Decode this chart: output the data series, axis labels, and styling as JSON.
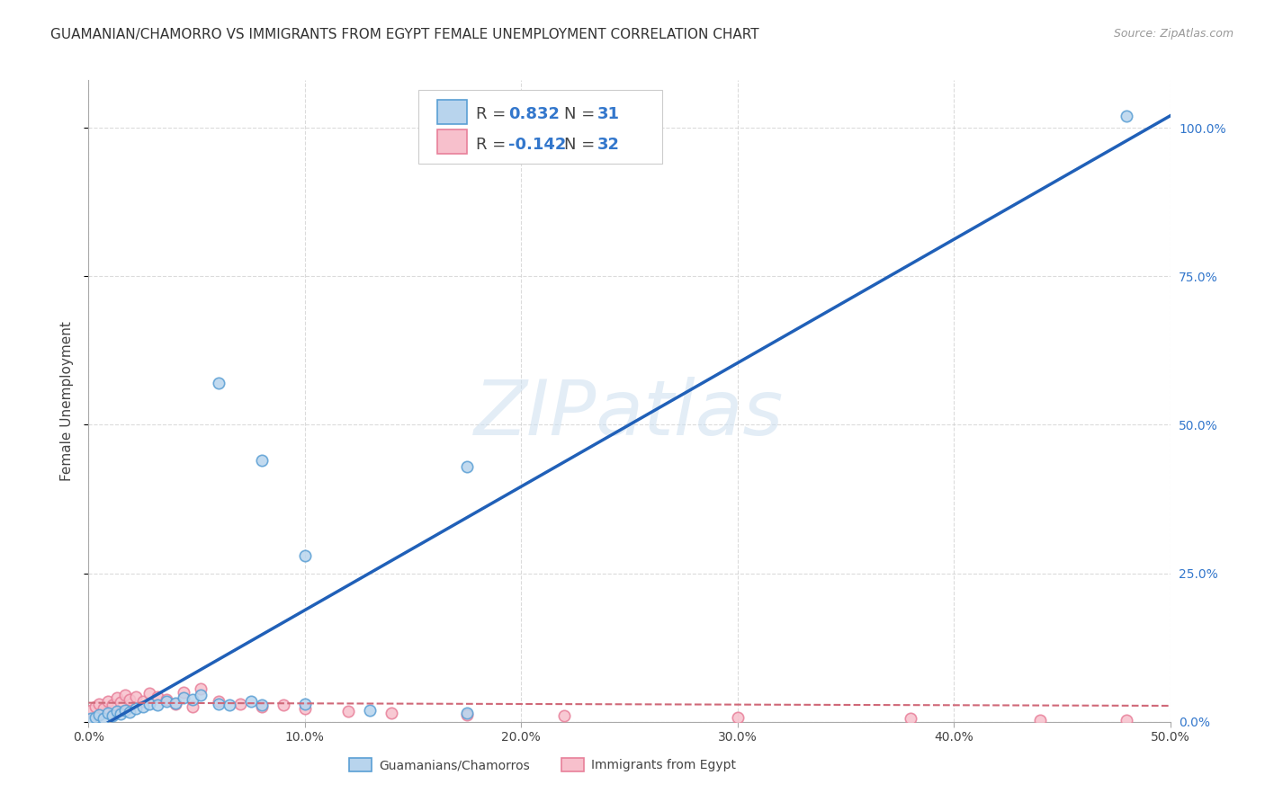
{
  "title": "GUAMANIAN/CHAMORRO VS IMMIGRANTS FROM EGYPT FEMALE UNEMPLOYMENT CORRELATION CHART",
  "source": "Source: ZipAtlas.com",
  "ylabel": "Female Unemployment",
  "x_ticks": [
    0.0,
    0.1,
    0.2,
    0.3,
    0.4,
    0.5
  ],
  "x_tick_labels": [
    "0.0%",
    "10.0%",
    "20.0%",
    "30.0%",
    "40.0%",
    "50.0%"
  ],
  "y_ticks_right": [
    0.0,
    0.25,
    0.5,
    0.75,
    1.0
  ],
  "y_tick_labels_right": [
    "0.0%",
    "25.0%",
    "50.0%",
    "75.0%",
    "100.0%"
  ],
  "xlim": [
    0.0,
    0.5
  ],
  "ylim": [
    0.0,
    1.08
  ],
  "blue_fill": "#b8d4ed",
  "blue_edge": "#5a9fd4",
  "pink_fill": "#f7c0cc",
  "pink_edge": "#e8809a",
  "trend_blue_color": "#2060b8",
  "trend_pink_color": "#d06878",
  "grid_color": "#cccccc",
  "watermark": "ZIPatlas",
  "legend_label_blue": "Guamanians/Chamorros",
  "legend_label_pink": "Immigrants from Egypt",
  "blue_x": [
    0.001,
    0.003,
    0.005,
    0.007,
    0.009,
    0.011,
    0.013,
    0.015,
    0.017,
    0.019,
    0.022,
    0.025,
    0.028,
    0.032,
    0.036,
    0.04,
    0.044,
    0.048,
    0.052,
    0.06,
    0.065,
    0.075,
    0.08,
    0.1,
    0.13,
    0.175,
    0.48,
    0.06,
    0.08,
    0.1,
    0.175
  ],
  "blue_y": [
    0.005,
    0.008,
    0.012,
    0.006,
    0.015,
    0.01,
    0.018,
    0.013,
    0.02,
    0.016,
    0.022,
    0.025,
    0.03,
    0.028,
    0.035,
    0.032,
    0.04,
    0.038,
    0.045,
    0.03,
    0.028,
    0.035,
    0.028,
    0.03,
    0.02,
    0.015,
    1.02,
    0.57,
    0.44,
    0.28,
    0.43
  ],
  "pink_x": [
    0.001,
    0.003,
    0.005,
    0.007,
    0.009,
    0.011,
    0.013,
    0.015,
    0.017,
    0.019,
    0.022,
    0.025,
    0.028,
    0.032,
    0.036,
    0.04,
    0.044,
    0.048,
    0.052,
    0.06,
    0.07,
    0.08,
    0.09,
    0.1,
    0.12,
    0.14,
    0.175,
    0.22,
    0.3,
    0.38,
    0.44,
    0.48
  ],
  "pink_y": [
    0.02,
    0.025,
    0.03,
    0.022,
    0.035,
    0.028,
    0.04,
    0.033,
    0.045,
    0.038,
    0.042,
    0.035,
    0.048,
    0.042,
    0.038,
    0.03,
    0.05,
    0.025,
    0.055,
    0.035,
    0.03,
    0.025,
    0.028,
    0.022,
    0.018,
    0.015,
    0.012,
    0.01,
    0.008,
    0.005,
    0.003,
    0.002
  ],
  "blue_trend_slope": 2.08,
  "blue_trend_intercept": -0.02,
  "pink_trend_slope": -0.01,
  "pink_trend_intercept": 0.032,
  "title_fontsize": 11,
  "tick_fontsize": 10,
  "marker_size": 80,
  "background": "#ffffff"
}
